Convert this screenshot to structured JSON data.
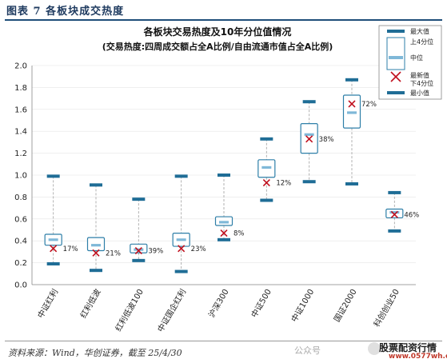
{
  "header": {
    "title": "图表 7   各板块成交热度"
  },
  "footer": {
    "source": "资料来源：Wind，华创证券，截至 25/4/30",
    "watermark_text": "公众号",
    "watermark_brand": "股票配资行情",
    "watermark_url": "www.0577wh.com"
  },
  "colors": {
    "box": "#2e7fa8",
    "cap": "#1f6d96",
    "median": "#7fb8d8",
    "latest": "#c0101e",
    "whisker": "#aaaaaa"
  },
  "chart_data": {
    "type": "box",
    "title": "各板块交易热度及10年分位值情况",
    "subtitle": "(交易热度:四周成交额占全A比例/自由流通市值占全A比例)",
    "ylim": [
      0,
      2.0
    ],
    "yticks": [
      "0.0",
      "0.2",
      "0.4",
      "0.6",
      "0.8",
      "1.0",
      "1.2",
      "1.4",
      "1.6",
      "1.8",
      "2.0"
    ],
    "categories": [
      "中证红利",
      "红利低波",
      "红利低波100",
      "中证国企红利",
      "沪深300",
      "中证500",
      "中证1000",
      "国证2000",
      "科创创业50"
    ],
    "max": [
      0.99,
      0.91,
      0.78,
      0.99,
      1.0,
      1.33,
      1.67,
      1.87,
      0.84
    ],
    "q3": [
      0.46,
      0.43,
      0.37,
      0.47,
      0.62,
      1.14,
      1.47,
      1.73,
      0.69
    ],
    "median": [
      0.41,
      0.36,
      0.32,
      0.41,
      0.57,
      1.07,
      1.37,
      1.57,
      0.66
    ],
    "q1": [
      0.36,
      0.31,
      0.29,
      0.35,
      0.54,
      0.98,
      1.2,
      1.43,
      0.61
    ],
    "min": [
      0.19,
      0.13,
      0.22,
      0.12,
      0.41,
      0.77,
      0.94,
      0.92,
      0.49
    ],
    "latest": [
      0.33,
      0.29,
      0.31,
      0.33,
      0.47,
      0.93,
      1.33,
      1.65,
      0.64
    ],
    "percentile_labels": [
      "17%",
      "21%",
      "39%",
      "23%",
      "8%",
      "12%",
      "38%",
      "72%",
      "46%"
    ],
    "legend": [
      "最大值",
      "上4分位",
      "中位",
      "最新值",
      "下4分位",
      "最小值"
    ]
  }
}
